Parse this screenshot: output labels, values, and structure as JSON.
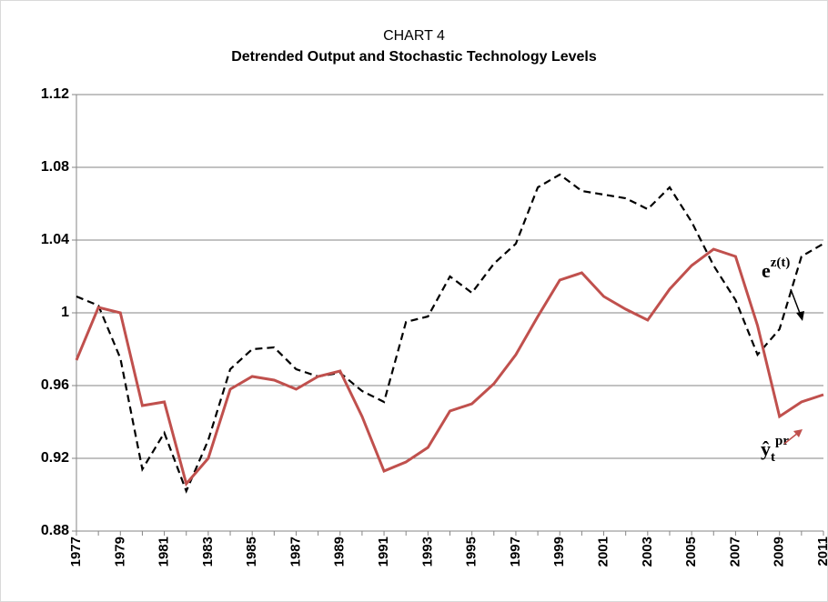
{
  "chart_data": {
    "type": "line",
    "title": "CHART 4",
    "subtitle": "Detrended Output and Stochastic Technology Levels",
    "categories": [
      "1977",
      null,
      "1979",
      null,
      "1981",
      null,
      "1983",
      null,
      "1985",
      null,
      "1987",
      null,
      "1989",
      null,
      "1991",
      null,
      "1993",
      null,
      "1995",
      null,
      "1997",
      null,
      "1999",
      null,
      "2001",
      null,
      "2003",
      null,
      "2005",
      null,
      "2007",
      null,
      "2009",
      null,
      "2011"
    ],
    "series": [
      {
        "color": "#000000",
        "dash": true,
        "values": [
          1.009,
          1.004,
          0.975,
          0.914,
          0.934,
          0.902,
          0.93,
          0.969,
          0.98,
          0.981,
          0.969,
          0.965,
          0.967,
          0.957,
          0.951,
          0.995,
          0.998,
          1.02,
          1.011,
          1.027,
          1.038,
          1.069,
          1.076,
          1.067,
          1.065,
          1.063,
          1.057,
          1.069,
          1.05,
          1.026,
          1.007,
          0.977,
          0.991,
          1.031,
          1.038
        ]
      },
      {
        "color": "#c0504d",
        "dash": false,
        "values": [
          0.974,
          1.003,
          1.0,
          0.949,
          0.951,
          0.906,
          0.92,
          0.958,
          0.965,
          0.963,
          0.958,
          0.965,
          0.968,
          0.943,
          0.913,
          0.918,
          0.926,
          0.946,
          0.95,
          0.961,
          0.977,
          0.998,
          1.018,
          1.022,
          1.009,
          1.002,
          0.996,
          1.013,
          1.026,
          1.035,
          1.031,
          0.993,
          0.943,
          0.951,
          0.955
        ]
      }
    ],
    "annotations": [
      {
        "base": "e",
        "sup": "z(t)"
      },
      {
        "base": "ŷ",
        "sub": "t",
        "sup": "pr"
      }
    ],
    "ylim": [
      0.88,
      1.12
    ],
    "yticks": [
      0.88,
      0.92,
      0.96,
      1,
      1.04,
      1.08,
      1.12
    ],
    "grid": true
  }
}
